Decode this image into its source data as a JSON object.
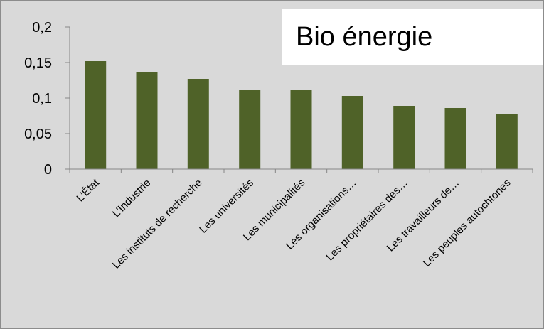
{
  "chart_data": {
    "type": "bar",
    "title": "Bio énergie",
    "categories": [
      "L’État",
      "L’Industrie",
      "Les instituts de recherche",
      "Les universités",
      "Les municipalités",
      "Les organisations…",
      "Les propriétaires des…",
      "Les travailleurs de…",
      "Les peuples autochtones"
    ],
    "values": [
      0.152,
      0.136,
      0.127,
      0.112,
      0.112,
      0.103,
      0.089,
      0.086,
      0.077
    ],
    "ylim": [
      0,
      0.2
    ],
    "yticks": [
      "0",
      "0,05",
      "0,1",
      "0,15",
      "0,2"
    ],
    "ytick_values": [
      0,
      0.05,
      0.1,
      0.15,
      0.2
    ],
    "grid": false,
    "xlabel": "",
    "ylabel": "",
    "bar_color": "#4f6228",
    "background_color": "#d9d9d9"
  }
}
